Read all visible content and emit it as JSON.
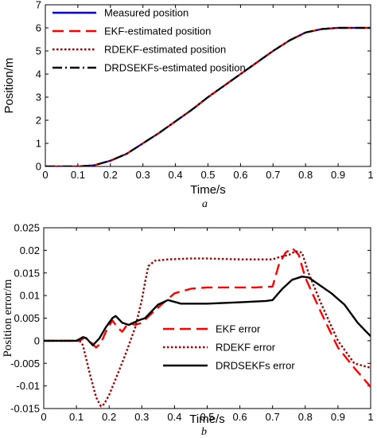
{
  "chart_data": [
    {
      "type": "line",
      "panel_label": "a",
      "xlabel": "Time/s",
      "ylabel": "Position/m",
      "xlim": [
        0,
        1
      ],
      "ylim": [
        0,
        7
      ],
      "xticks": [
        "0",
        "0.1",
        "0.2",
        "0.3",
        "0.4",
        "0.5",
        "0.6",
        "0.7",
        "0.8",
        "0.9",
        "1"
      ],
      "yticks": [
        "0",
        "1",
        "2",
        "3",
        "4",
        "5",
        "6",
        "7"
      ],
      "grid": false,
      "legend_position": "top-left",
      "series": [
        {
          "name": "Measured position",
          "color": "#0000ff",
          "style": "solid",
          "x": [
            0,
            0.1,
            0.15,
            0.2,
            0.25,
            0.3,
            0.35,
            0.4,
            0.45,
            0.5,
            0.55,
            0.6,
            0.65,
            0.7,
            0.75,
            0.8,
            0.85,
            0.9,
            1.0
          ],
          "y": [
            0,
            0,
            0.05,
            0.25,
            0.55,
            1.0,
            1.45,
            1.95,
            2.45,
            3.0,
            3.5,
            4.0,
            4.5,
            5.0,
            5.45,
            5.8,
            5.95,
            6.0,
            6.0
          ]
        },
        {
          "name": "EKF-estimated position",
          "color": "#ff0000",
          "style": "dashed",
          "x": [
            0,
            0.1,
            0.15,
            0.2,
            0.25,
            0.3,
            0.35,
            0.4,
            0.45,
            0.5,
            0.55,
            0.6,
            0.65,
            0.7,
            0.75,
            0.8,
            0.85,
            0.9,
            1.0
          ],
          "y": [
            0,
            0,
            0.05,
            0.25,
            0.55,
            1.0,
            1.45,
            1.95,
            2.45,
            3.0,
            3.5,
            4.0,
            4.5,
            5.0,
            5.45,
            5.8,
            5.95,
            6.0,
            6.0
          ]
        },
        {
          "name": "RDEKF-estimated position",
          "color": "#a00000",
          "style": "dotted",
          "x": [
            0,
            0.1,
            0.15,
            0.2,
            0.25,
            0.3,
            0.35,
            0.4,
            0.45,
            0.5,
            0.55,
            0.6,
            0.65,
            0.7,
            0.75,
            0.8,
            0.85,
            0.9,
            1.0
          ],
          "y": [
            0,
            0,
            0.05,
            0.25,
            0.55,
            1.0,
            1.45,
            1.95,
            2.45,
            3.0,
            3.5,
            4.0,
            4.5,
            5.0,
            5.45,
            5.8,
            5.95,
            6.0,
            6.0
          ]
        },
        {
          "name": "DRDSEKFs-estimated position",
          "color": "#000000",
          "style": "dashdot",
          "x": [
            0,
            0.1,
            0.15,
            0.2,
            0.25,
            0.3,
            0.35,
            0.4,
            0.45,
            0.5,
            0.55,
            0.6,
            0.65,
            0.7,
            0.75,
            0.8,
            0.85,
            0.9,
            1.0
          ],
          "y": [
            0,
            0,
            0.05,
            0.25,
            0.55,
            1.0,
            1.45,
            1.95,
            2.45,
            3.0,
            3.5,
            4.0,
            4.5,
            5.0,
            5.45,
            5.8,
            5.95,
            6.0,
            6.0
          ]
        }
      ]
    },
    {
      "type": "line",
      "panel_label": "b",
      "xlabel": "Time/s",
      "ylabel": "Position error/m",
      "xlim": [
        0,
        1
      ],
      "ylim": [
        -0.015,
        0.025
      ],
      "xticks": [
        "0",
        "0.1",
        "0.2",
        "0.3",
        "0.4",
        "0.5",
        "0.6",
        "0.7",
        "0.8",
        "0.9",
        "1"
      ],
      "yticks": [
        "-0.015",
        "-0.01",
        "-0.005",
        "0",
        "0.005",
        "0.01",
        "0.015",
        "0.02",
        "0.025"
      ],
      "grid": false,
      "legend_position": "bottom-center",
      "series": [
        {
          "name": "EKF error",
          "color": "#ff0000",
          "style": "dashed",
          "x": [
            0,
            0.11,
            0.125,
            0.14,
            0.16,
            0.175,
            0.19,
            0.21,
            0.225,
            0.24,
            0.26,
            0.28,
            0.3,
            0.33,
            0.36,
            0.4,
            0.45,
            0.5,
            0.55,
            0.6,
            0.65,
            0.7,
            0.72,
            0.74,
            0.76,
            0.78,
            0.8,
            0.85,
            0.9,
            0.95,
            1.0
          ],
          "y": [
            0,
            0,
            0.0007,
            0,
            -0.0015,
            -0.0005,
            0.002,
            0.0045,
            0.003,
            0.002,
            0.004,
            0.0035,
            0.004,
            0.006,
            0.008,
            0.0105,
            0.0115,
            0.0118,
            0.0118,
            0.0118,
            0.0118,
            0.012,
            0.017,
            0.0195,
            0.0205,
            0.019,
            0.014,
            0.006,
            -0.0015,
            -0.006,
            -0.0102
          ]
        },
        {
          "name": "RDEKF error",
          "color": "#a00000",
          "style": "dotted",
          "x": [
            0,
            0.11,
            0.12,
            0.14,
            0.16,
            0.175,
            0.185,
            0.2,
            0.22,
            0.25,
            0.28,
            0.3,
            0.31,
            0.32,
            0.34,
            0.38,
            0.45,
            0.5,
            0.55,
            0.6,
            0.65,
            0.7,
            0.72,
            0.75,
            0.77,
            0.79,
            0.81,
            0.85,
            0.9,
            0.95,
            1.0
          ],
          "y": [
            0,
            0,
            -0.001,
            -0.007,
            -0.0125,
            -0.0145,
            -0.014,
            -0.012,
            -0.0085,
            -0.003,
            0.003,
            0.009,
            0.013,
            0.0165,
            0.0177,
            0.018,
            0.0182,
            0.0182,
            0.0181,
            0.018,
            0.018,
            0.018,
            0.0185,
            0.019,
            0.0198,
            0.0195,
            0.015,
            0.008,
            0.0,
            -0.005,
            -0.006
          ]
        },
        {
          "name": "DRDSEKFs error",
          "color": "#000000",
          "style": "solid",
          "x": [
            0,
            0.1,
            0.12,
            0.13,
            0.15,
            0.17,
            0.19,
            0.21,
            0.22,
            0.24,
            0.26,
            0.29,
            0.31,
            0.33,
            0.35,
            0.38,
            0.42,
            0.5,
            0.6,
            0.68,
            0.7,
            0.73,
            0.76,
            0.79,
            0.81,
            0.84,
            0.88,
            0.92,
            0.96,
            1.0
          ],
          "y": [
            0,
            0,
            0.0008,
            0.0006,
            -0.001,
            0.0005,
            0.003,
            0.005,
            0.0055,
            0.004,
            0.0035,
            0.0045,
            0.005,
            0.0065,
            0.008,
            0.009,
            0.0082,
            0.0082,
            0.0085,
            0.0088,
            0.009,
            0.0115,
            0.0135,
            0.0142,
            0.014,
            0.0125,
            0.0105,
            0.008,
            0.004,
            0.001
          ]
        }
      ]
    }
  ]
}
